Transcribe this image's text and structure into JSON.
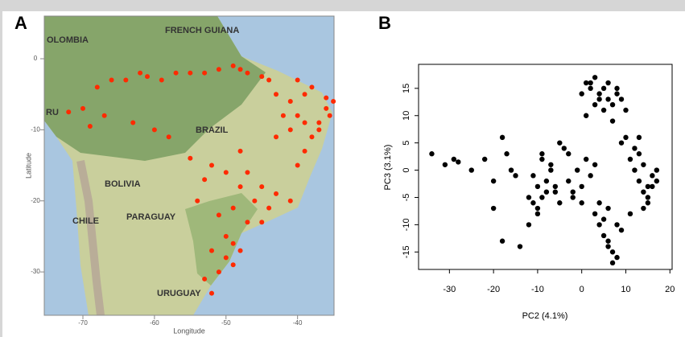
{
  "chart_data": [
    {
      "type": "map",
      "panel": "A",
      "x_label": "Longitude",
      "y_label": "Latitude",
      "region_labels": [
        "OLOMBIA",
        "FRENCH GUIANA",
        "RU",
        "BRAZIL",
        "BOLIVIA",
        "PARAGUAY",
        "CHILE",
        "URUGUAY"
      ],
      "xlim": [
        -75.4,
        -34.9
      ],
      "ylim": [
        -36.1,
        6
      ],
      "xticks": [
        -70,
        -60,
        -50,
        -40
      ],
      "yticks": [
        0,
        -10,
        -20,
        -30
      ],
      "color": "#ff2a00",
      "x": [
        -66,
        -64,
        -61,
        -59,
        -57,
        -55,
        -53,
        -51,
        -49,
        -48,
        -47,
        -45,
        -62,
        -68,
        -70,
        -67,
        -63,
        -60,
        -58,
        -72,
        -69,
        -35,
        -36,
        -38,
        -39,
        -40,
        -37,
        -38,
        -39,
        -40,
        -41,
        -42,
        -43,
        -44,
        -36,
        -35.5,
        -41,
        -43,
        -40,
        -39,
        -37,
        -48,
        -50,
        -47,
        -45,
        -43,
        -41,
        -44,
        -46,
        -48,
        -52,
        -55,
        -53,
        -49,
        -47,
        -45,
        -51,
        -54,
        -50,
        -49,
        -52,
        -50,
        -51,
        -53,
        -52,
        -49,
        -48
      ],
      "y": [
        -3,
        -3,
        -2.5,
        -3,
        -2,
        -2,
        -2,
        -1.5,
        -1,
        -1.5,
        -2,
        -2.5,
        -2,
        -4,
        -7,
        -8,
        -9,
        -10,
        -11,
        -7.5,
        -9.5,
        -6,
        -7,
        -4,
        -5,
        -3,
        -9,
        -11,
        -13,
        -15,
        -6,
        -8,
        -5,
        -3,
        -5.5,
        -8,
        -10,
        -11,
        -8,
        -9,
        -10,
        -13,
        -16,
        -16,
        -18,
        -19,
        -20,
        -21,
        -20,
        -18,
        -15,
        -14,
        -17,
        -21,
        -23,
        -23,
        -22,
        -20,
        -25,
        -26,
        -27,
        -28,
        -30,
        -31,
        -33,
        -29,
        -27
      ]
    },
    {
      "type": "scatter",
      "panel": "B",
      "x_label": "PC2 (4.1%)",
      "y_label": "PC3 (3.1%)",
      "xlim": [
        -37,
        20.5
      ],
      "ylim": [
        -18.2,
        19.4
      ],
      "xticks": [
        -30,
        -20,
        -10,
        0,
        10,
        20
      ],
      "yticks": [
        -15,
        -10,
        -5,
        0,
        5,
        10,
        15
      ],
      "color": "#000000",
      "x": [
        -34,
        -31,
        -29,
        -28,
        -25,
        -22,
        -20,
        -18,
        -17,
        -16,
        -15,
        -20,
        -18,
        -14,
        -12,
        -11,
        -10,
        -9,
        -8,
        -7,
        -11,
        -10,
        -9,
        -8,
        -6,
        -12,
        -10,
        -7,
        -5,
        -9,
        0,
        1,
        2,
        3,
        4,
        5,
        6,
        7,
        8,
        9,
        10,
        1,
        3,
        5,
        7,
        2,
        4,
        6,
        8,
        11,
        12,
        13,
        14,
        15,
        16,
        17,
        12,
        13,
        14,
        15,
        16,
        17,
        15,
        14,
        13,
        3,
        4,
        5,
        6,
        7,
        8,
        9,
        5,
        6,
        7,
        8,
        4,
        6,
        -3,
        -2,
        -1,
        0,
        1,
        2,
        -4,
        -5,
        -2,
        0,
        3,
        -6,
        -3,
        9,
        10,
        11
      ],
      "y": [
        3,
        1,
        2,
        1.5,
        0,
        2,
        -2,
        6,
        3,
        0,
        -1,
        -7,
        -13,
        -14,
        -10,
        -1,
        -3,
        -5,
        -2,
        0,
        -6,
        -8,
        2,
        -4,
        -3,
        -5,
        -7,
        1,
        -6,
        3,
        14,
        16,
        15,
        17,
        13,
        15,
        16,
        12,
        14,
        13,
        11,
        10,
        12,
        11,
        9,
        16,
        14,
        13,
        15,
        2,
        0,
        -2,
        -4,
        -3,
        -1,
        -2,
        4,
        3,
        1,
        -5,
        -3,
        0,
        -6,
        -7,
        6,
        -8,
        -10,
        -12,
        -14,
        -15,
        -16,
        -11,
        -9,
        -13,
        -17,
        -10,
        -6,
        -7,
        -2,
        -4,
        0,
        -3,
        2,
        -1,
        4,
        5,
        -5,
        -6,
        1,
        -4,
        3,
        5,
        6,
        -8
      ]
    }
  ]
}
